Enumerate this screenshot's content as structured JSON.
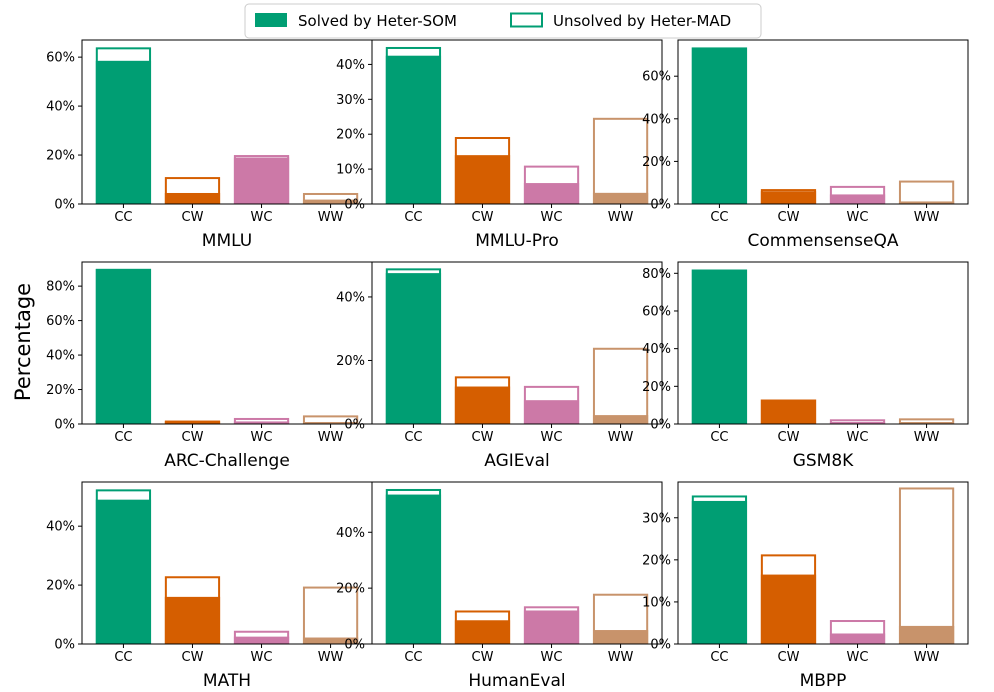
{
  "figure": {
    "ylabel": "Percentage",
    "legend": {
      "placement": "top-center",
      "items": [
        {
          "label": "Solved by Heter-SOM",
          "style": "filled",
          "color": "#009E73"
        },
        {
          "label": "Unsolved by Heter-MAD",
          "style": "outline",
          "color": "#009E73"
        }
      ]
    },
    "category_colors": {
      "CC": "#009E73",
      "CW": "#D55E00",
      "WC": "#CC79A7",
      "WW": "#C8936B"
    }
  },
  "chart_data": [
    {
      "type": "bar",
      "title": "MMLU",
      "categories": [
        "CC",
        "CW",
        "WC",
        "WW"
      ],
      "series": [
        {
          "name": "Solved by Heter-SOM",
          "values": [
            58.5,
            4.5,
            19,
            1.8
          ]
        },
        {
          "name": "Unsolved by Heter-MAD",
          "values": [
            64,
            11,
            20,
            4.5
          ]
        }
      ],
      "ylim": [
        0,
        67
      ],
      "yticks": [
        0,
        20,
        40,
        60
      ],
      "yticklabels": [
        "0%",
        "20%",
        "40%",
        "60%"
      ]
    },
    {
      "type": "bar",
      "title": "MMLU-Pro",
      "categories": [
        "CC",
        "CW",
        "WC",
        "WW"
      ],
      "series": [
        {
          "name": "Solved by Heter-SOM",
          "values": [
            42.5,
            14,
            6,
            3.2
          ]
        },
        {
          "name": "Unsolved by Heter-MAD",
          "values": [
            45,
            19.2,
            11,
            24.7
          ]
        }
      ],
      "ylim": [
        0,
        47
      ],
      "yticks": [
        0,
        10,
        20,
        30,
        40
      ],
      "yticklabels": [
        "0%",
        "10%",
        "20%",
        "30%",
        "40%"
      ]
    },
    {
      "type": "bar",
      "title": "CommensenseQA",
      "categories": [
        "CC",
        "CW",
        "WC",
        "WW"
      ],
      "series": [
        {
          "name": "Solved by Heter-SOM",
          "values": [
            73.5,
            6,
            4.5,
            1.2
          ]
        },
        {
          "name": "Unsolved by Heter-MAD",
          "values": [
            73.5,
            7,
            8.5,
            11
          ]
        }
      ],
      "ylim": [
        0,
        77
      ],
      "yticks": [
        0,
        20,
        40,
        60
      ],
      "yticklabels": [
        "0%",
        "20%",
        "40%",
        "60%"
      ]
    },
    {
      "type": "bar",
      "title": "ARC-Challenge",
      "categories": [
        "CC",
        "CW",
        "WC",
        "WW"
      ],
      "series": [
        {
          "name": "Solved by Heter-SOM",
          "values": [
            90,
            1.5,
            1.5,
            0.5
          ]
        },
        {
          "name": "Unsolved by Heter-MAD",
          "values": [
            90,
            2,
            3.5,
            5
          ]
        }
      ],
      "ylim": [
        0,
        94
      ],
      "yticks": [
        0,
        20,
        40,
        60,
        80
      ],
      "yticklabels": [
        "0%",
        "20%",
        "40%",
        "60%",
        "80%"
      ]
    },
    {
      "type": "bar",
      "title": "AGIEval",
      "categories": [
        "CC",
        "CW",
        "WC",
        "WW"
      ],
      "series": [
        {
          "name": "Solved by Heter-SOM",
          "values": [
            47.5,
            11.8,
            7.5,
            2.8
          ]
        },
        {
          "name": "Unsolved by Heter-MAD",
          "values": [
            49,
            15,
            12,
            24
          ]
        }
      ],
      "ylim": [
        0,
        51
      ],
      "yticks": [
        0,
        20,
        40
      ],
      "yticklabels": [
        "0%",
        "20%",
        "40%"
      ]
    },
    {
      "type": "bar",
      "title": "GSM8K",
      "categories": [
        "CC",
        "CW",
        "WC",
        "WW"
      ],
      "series": [
        {
          "name": "Solved by Heter-SOM",
          "values": [
            82,
            13,
            1,
            0.3
          ]
        },
        {
          "name": "Unsolved by Heter-MAD",
          "values": [
            82,
            13,
            2.5,
            3
          ]
        }
      ],
      "ylim": [
        0,
        86
      ],
      "yticks": [
        0,
        20,
        40,
        60,
        80
      ],
      "yticklabels": [
        "0%",
        "20%",
        "40%",
        "60%",
        "80%"
      ]
    },
    {
      "type": "bar",
      "title": "MATH",
      "categories": [
        "CC",
        "CW",
        "WC",
        "WW"
      ],
      "series": [
        {
          "name": "Solved by Heter-SOM",
          "values": [
            49,
            16,
            2.5,
            2.2
          ]
        },
        {
          "name": "Unsolved by Heter-MAD",
          "values": [
            52.5,
            23,
            4.5,
            19.5
          ]
        }
      ],
      "ylim": [
        0,
        55
      ],
      "yticks": [
        0,
        20,
        40
      ],
      "yticklabels": [
        "0%",
        "20%",
        "40%"
      ]
    },
    {
      "type": "bar",
      "title": "HumanEval",
      "categories": [
        "CC",
        "CW",
        "WC",
        "WW"
      ],
      "series": [
        {
          "name": "Solved by Heter-SOM",
          "values": [
            53.5,
            8.5,
            12,
            5
          ]
        },
        {
          "name": "Unsolved by Heter-MAD",
          "values": [
            55.5,
            12,
            13.5,
            18
          ]
        }
      ],
      "ylim": [
        0,
        58
      ],
      "yticks": [
        0,
        20,
        40
      ],
      "yticklabels": [
        "0%",
        "20%",
        "40%"
      ]
    },
    {
      "type": "bar",
      "title": "MBPP",
      "categories": [
        "CC",
        "CW",
        "WC",
        "WW"
      ],
      "series": [
        {
          "name": "Solved by Heter-SOM",
          "values": [
            34,
            16.5,
            2.5,
            4.3
          ]
        },
        {
          "name": "Unsolved by Heter-MAD",
          "values": [
            35.3,
            21.3,
            5.7,
            37.2
          ]
        }
      ],
      "ylim": [
        0,
        38.5
      ],
      "yticks": [
        0,
        10,
        20,
        30
      ],
      "yticklabels": [
        "0%",
        "10%",
        "20%",
        "30%"
      ]
    }
  ]
}
